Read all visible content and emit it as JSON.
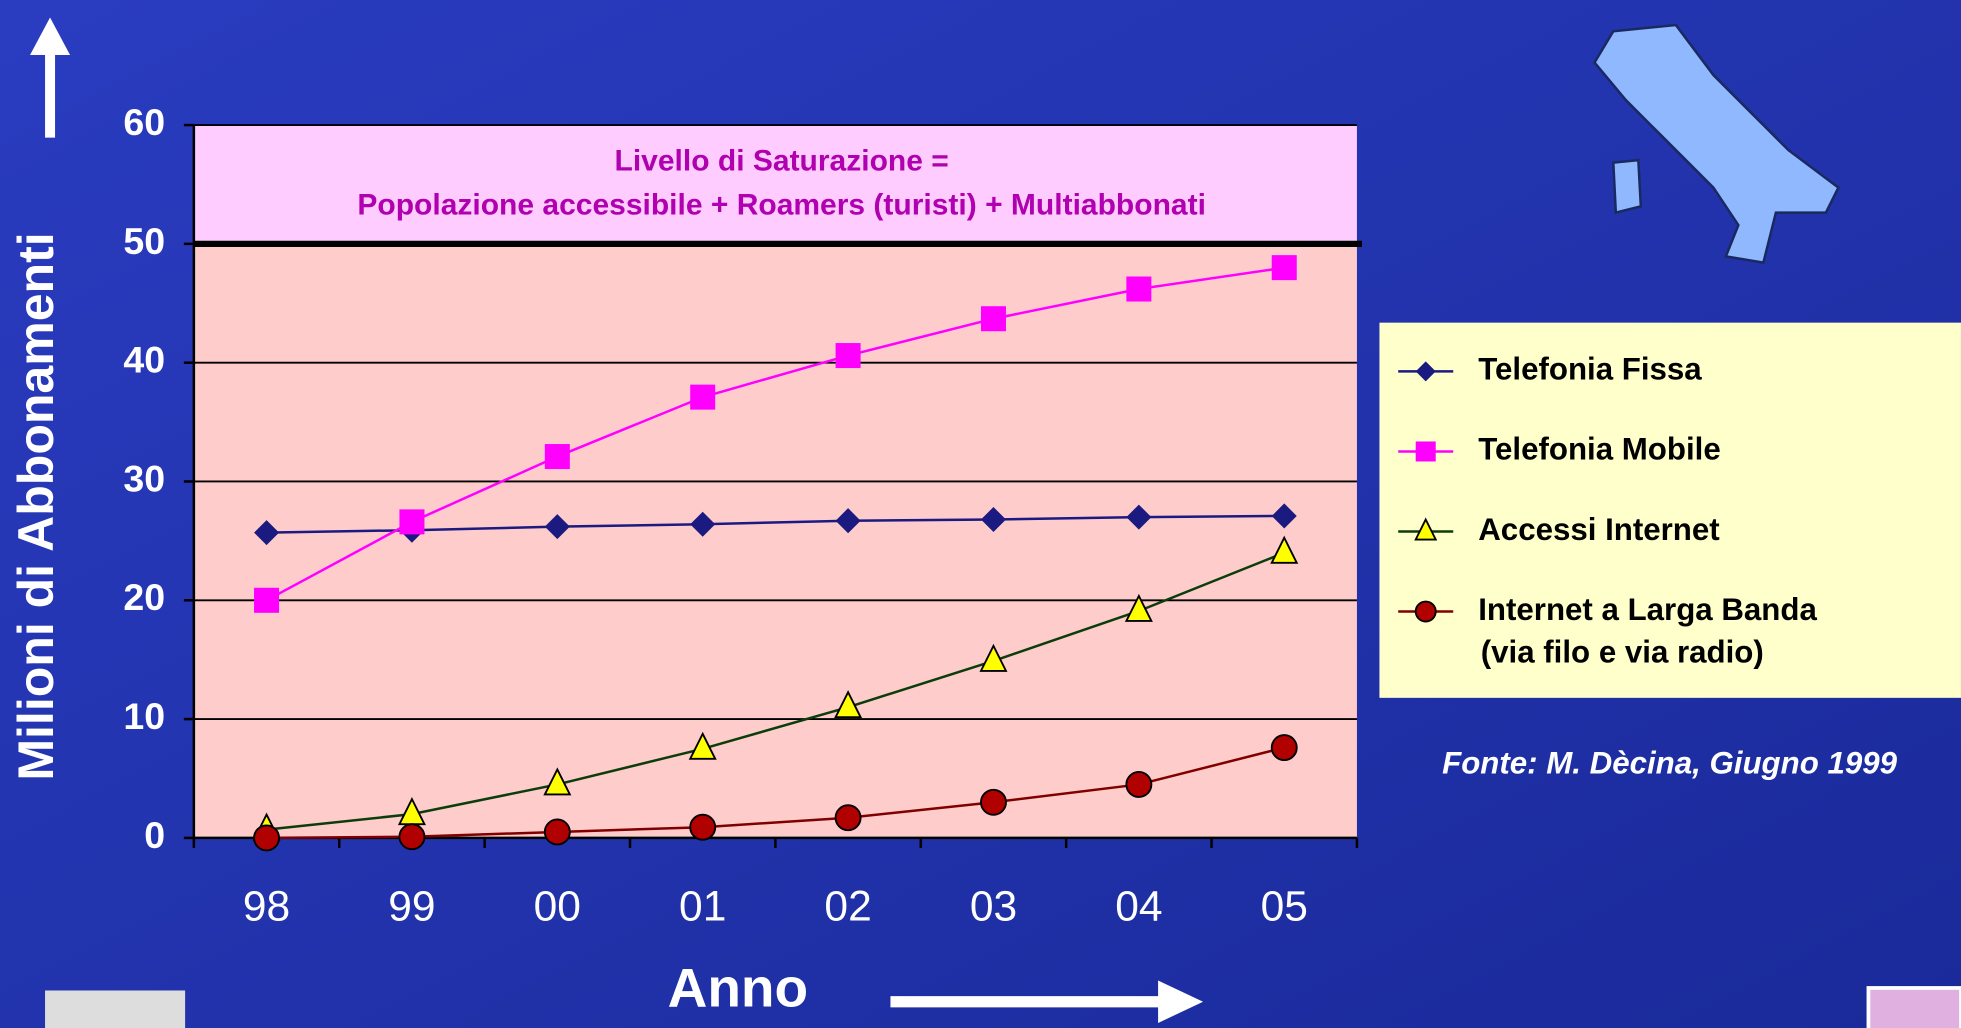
{
  "chart_data": {
    "type": "line",
    "y_label": "Milioni di Abbonamenti",
    "x_label": "Anno",
    "annotation": [
      "Livello di Saturazione =",
      "Popolazione accessibile + Roamers (turisti)  + Multiabbonati"
    ],
    "saturation_level": 50,
    "categories": [
      "98",
      "99",
      "00",
      "01",
      "02",
      "03",
      "04",
      "05"
    ],
    "series": [
      {
        "name": "Telefonia Fissa",
        "color": "#1a1a80",
        "marker": "diamond",
        "values": [
          25.7,
          25.9,
          26.2,
          26.4,
          26.7,
          26.8,
          27.0,
          27.1
        ]
      },
      {
        "name": "Telefonia Mobile",
        "color": "#ff00ff",
        "marker": "square",
        "values": [
          20.0,
          26.6,
          32.1,
          37.1,
          40.6,
          43.7,
          46.2,
          48.0
        ]
      },
      {
        "name": "Accessi Internet",
        "color": "#0b3d0b",
        "marker_color": "#ffff00",
        "marker": "triangle",
        "values": [
          0.7,
          2.0,
          4.5,
          7.5,
          11.0,
          14.9,
          19.1,
          24.0
        ]
      },
      {
        "name": "Internet a Larga Banda",
        "color": "#800000",
        "marker_color": "#b00000",
        "marker": "circle",
        "values": [
          0.0,
          0.1,
          0.5,
          0.9,
          1.7,
          3.0,
          4.5,
          7.6
        ]
      }
    ],
    "legend_note": "(via filo e via radio)",
    "legend_position": "right",
    "source": "Fonte: M. Dècina, Giugno 1999",
    "ylim": [
      0,
      60
    ],
    "yticks": [
      0,
      10,
      20,
      30,
      40,
      50,
      60
    ],
    "grid": true
  }
}
